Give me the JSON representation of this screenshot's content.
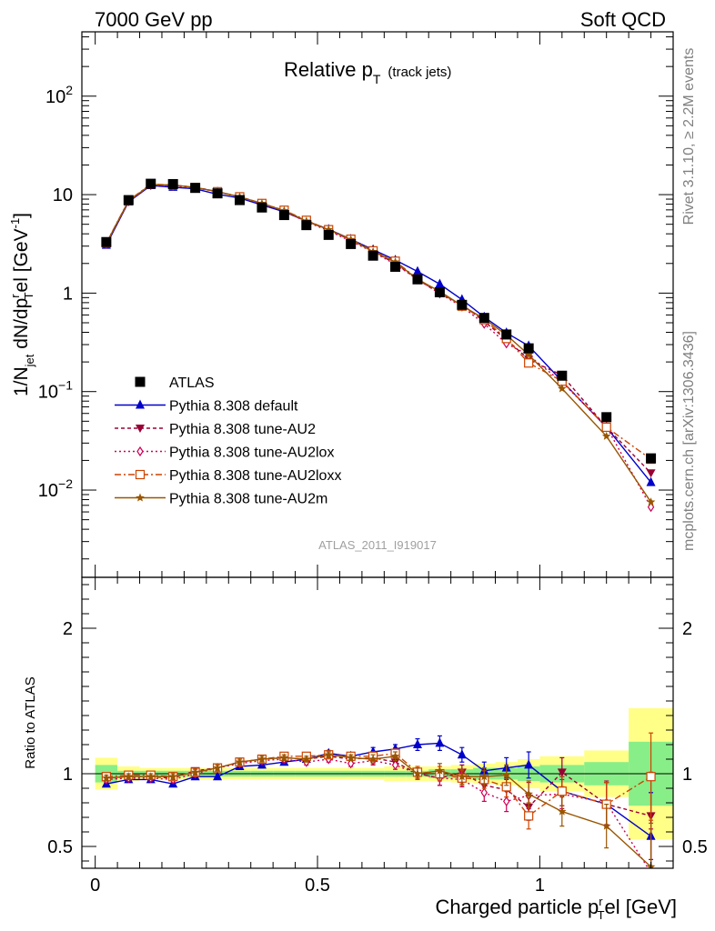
{
  "header": {
    "left": "7000 GeV pp",
    "right": "Soft QCD"
  },
  "title": {
    "main": "Relative p",
    "sub": "T",
    "suffix": "(track jets)"
  },
  "ylabel": {
    "a": "1/N",
    "a_sub": "jet",
    "b": " dN/dp",
    "b_sup": "r",
    "b_sub": "T",
    "c": "el [GeV",
    "c_sup": "-1",
    "d": "]"
  },
  "ratio_ylabel": "Ratio to ATLAS",
  "xlabel": {
    "a": "Charged particle p",
    "a_sup": "r",
    "a_sub": "T",
    "b": "el [GeV]"
  },
  "side_right_top": "Rivet 3.1.10, ≥ 2.2M events",
  "side_right_bottom": "mcplots.cern.ch [arXiv:1306.3436]",
  "watermark": "ATLAS_2011_I919017",
  "chart_data": {
    "type": "line",
    "x_axis": {
      "range": [
        -0.03,
        1.3
      ],
      "ticks": [
        0,
        0.5,
        1
      ],
      "tick_labels": [
        "0",
        "0.5",
        "1"
      ]
    },
    "main_y_axis": {
      "scale": "log",
      "range": [
        0.0013,
        450
      ],
      "tick_labels": [
        {
          "v": 100,
          "base": "10",
          "exp": "2"
        },
        {
          "v": 10,
          "base": "10",
          "exp": ""
        },
        {
          "v": 1,
          "base": "1",
          "exp": ""
        },
        {
          "v": 0.1,
          "base": "10",
          "exp": "−1"
        },
        {
          "v": 0.01,
          "base": "10",
          "exp": "−2"
        }
      ]
    },
    "ratio_y_axis": {
      "range": [
        0.35,
        2.35
      ],
      "ticks": [
        0.5,
        1,
        2
      ],
      "tick_labels": [
        "0.5",
        "1",
        "2"
      ]
    },
    "x": [
      0.025,
      0.075,
      0.125,
      0.175,
      0.225,
      0.275,
      0.325,
      0.375,
      0.425,
      0.475,
      0.525,
      0.575,
      0.625,
      0.675,
      0.725,
      0.775,
      0.825,
      0.875,
      0.925,
      0.975,
      1.05,
      1.15,
      1.25
    ],
    "reference": {
      "name": "ATLAS",
      "values": [
        3.3,
        8.8,
        12.9,
        12.8,
        11.7,
        10.3,
        8.8,
        7.4,
        6.2,
        4.9,
        3.9,
        3.15,
        2.4,
        1.85,
        1.38,
        1.02,
        0.76,
        0.56,
        0.38,
        0.275,
        0.145,
        0.055,
        0.021
      ]
    },
    "bands": {
      "x_edges": [
        0.0,
        0.05,
        0.1,
        0.15,
        0.2,
        0.25,
        0.3,
        0.35,
        0.4,
        0.45,
        0.5,
        0.55,
        0.6,
        0.65,
        0.7,
        0.75,
        0.8,
        0.85,
        0.9,
        0.95,
        1.0,
        1.1,
        1.2,
        1.3
      ],
      "yellow_half": [
        0.11,
        0.05,
        0.04,
        0.04,
        0.04,
        0.04,
        0.04,
        0.04,
        0.04,
        0.04,
        0.04,
        0.04,
        0.04,
        0.05,
        0.05,
        0.05,
        0.06,
        0.07,
        0.08,
        0.1,
        0.12,
        0.16,
        0.45
      ],
      "green_half": [
        0.06,
        0.02,
        0.02,
        0.02,
        0.02,
        0.02,
        0.02,
        0.02,
        0.02,
        0.02,
        0.02,
        0.02,
        0.02,
        0.02,
        0.02,
        0.03,
        0.03,
        0.04,
        0.04,
        0.05,
        0.06,
        0.08,
        0.22
      ],
      "yellow_color": "#ffff88",
      "green_color": "#88ee88"
    },
    "series": [
      {
        "name": "Pythia 8.308 default",
        "color": "#0000cc",
        "marker": "triangle-up",
        "dash": "",
        "ratio": [
          0.93,
          0.96,
          0.96,
          0.93,
          0.98,
          0.98,
          1.05,
          1.06,
          1.08,
          1.1,
          1.14,
          1.12,
          1.15,
          1.17,
          1.2,
          1.21,
          1.13,
          1.02,
          1.04,
          1.06,
          0.88,
          0.79,
          0.57
        ],
        "err": [
          0.02,
          0.02,
          0.02,
          0.02,
          0.02,
          0.02,
          0.02,
          0.02,
          0.02,
          0.02,
          0.02,
          0.02,
          0.03,
          0.03,
          0.04,
          0.05,
          0.05,
          0.06,
          0.07,
          0.09,
          0.1,
          0.15,
          0.3
        ]
      },
      {
        "name": "Pythia 8.308 tune-AU2",
        "color": "#990033",
        "marker": "triangle-down",
        "dash": "4,3",
        "ratio": [
          0.97,
          0.98,
          0.98,
          0.97,
          1.02,
          1.04,
          1.08,
          1.1,
          1.11,
          1.1,
          1.12,
          1.1,
          1.11,
          1.08,
          1.0,
          0.97,
          1.01,
          0.92,
          0.89,
          0.77,
          1.01,
          0.79,
          0.71
        ],
        "err": [
          0.02,
          0.02,
          0.02,
          0.02,
          0.02,
          0.02,
          0.02,
          0.02,
          0.02,
          0.02,
          0.02,
          0.02,
          0.03,
          0.03,
          0.04,
          0.05,
          0.05,
          0.06,
          0.07,
          0.09,
          0.1,
          0.15,
          0.3
        ]
      },
      {
        "name": "Pythia 8.308 tune-AU2lox",
        "color": "#cc0055",
        "marker": "diamond-open",
        "dash": "2,3",
        "ratio": [
          0.96,
          0.97,
          0.97,
          0.96,
          1.0,
          1.04,
          1.07,
          1.09,
          1.1,
          1.08,
          1.1,
          1.07,
          1.09,
          1.06,
          1.0,
          0.97,
          0.96,
          0.87,
          0.81,
          0.85,
          0.86,
          0.8,
          0.32
        ],
        "err": [
          0.02,
          0.02,
          0.02,
          0.02,
          0.02,
          0.02,
          0.02,
          0.02,
          0.02,
          0.02,
          0.02,
          0.02,
          0.03,
          0.03,
          0.04,
          0.05,
          0.05,
          0.06,
          0.07,
          0.09,
          0.1,
          0.15,
          0.3
        ]
      },
      {
        "name": "Pythia 8.308 tune-AU2loxx",
        "color": "#cc4400",
        "marker": "square-open",
        "dash": "7,3,2,3",
        "ratio": [
          0.98,
          0.99,
          0.99,
          0.98,
          1.01,
          1.04,
          1.08,
          1.1,
          1.12,
          1.12,
          1.13,
          1.12,
          1.12,
          1.14,
          1.01,
          1.0,
          0.97,
          0.96,
          0.91,
          0.71,
          0.88,
          0.79,
          0.98
        ],
        "err": [
          0.02,
          0.02,
          0.02,
          0.02,
          0.02,
          0.02,
          0.02,
          0.02,
          0.02,
          0.02,
          0.02,
          0.02,
          0.03,
          0.03,
          0.04,
          0.05,
          0.05,
          0.06,
          0.07,
          0.09,
          0.1,
          0.15,
          0.3
        ]
      },
      {
        "name": "Pythia 8.308 tune-AU2m",
        "color": "#995500",
        "marker": "star",
        "dash": "",
        "ratio": [
          0.97,
          0.98,
          0.98,
          0.98,
          1.01,
          1.04,
          1.08,
          1.1,
          1.11,
          1.1,
          1.13,
          1.11,
          1.1,
          1.12,
          1.0,
          1.02,
          0.98,
          0.98,
          0.99,
          0.86,
          0.74,
          0.64,
          0.36
        ],
        "err": [
          0.02,
          0.02,
          0.02,
          0.02,
          0.02,
          0.02,
          0.02,
          0.02,
          0.02,
          0.02,
          0.02,
          0.02,
          0.03,
          0.03,
          0.04,
          0.05,
          0.05,
          0.06,
          0.07,
          0.09,
          0.1,
          0.15,
          0.3
        ]
      }
    ]
  }
}
